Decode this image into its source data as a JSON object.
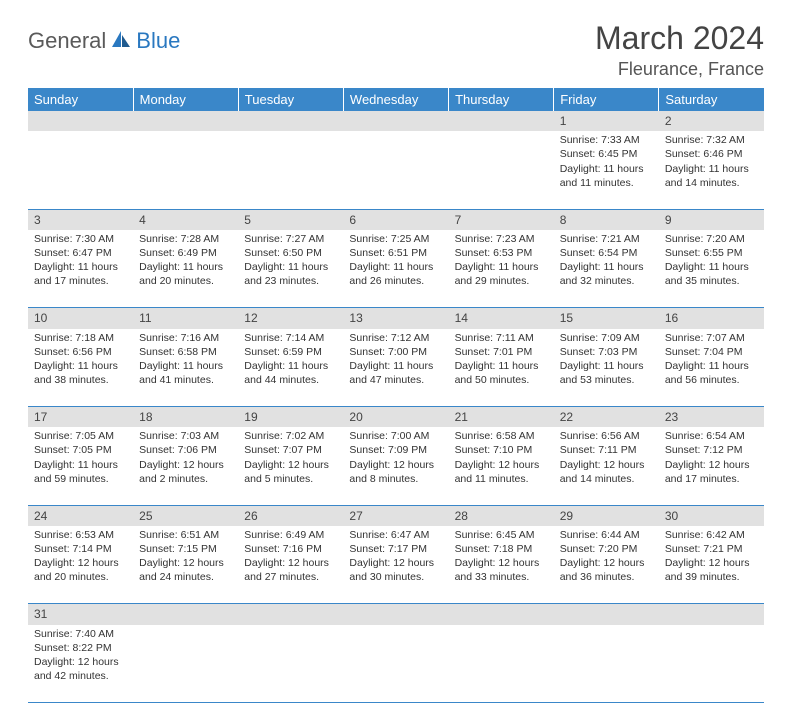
{
  "logo": {
    "general": "General",
    "blue": "Blue"
  },
  "title": "March 2024",
  "location": "Fleurance, France",
  "colors": {
    "header_bg": "#3a87c9",
    "header_text": "#ffffff",
    "daynum_bg": "#e1e1e1",
    "row_border": "#3a87c9",
    "logo_gray": "#5a5a5a",
    "logo_blue": "#2a78c0"
  },
  "day_names": [
    "Sunday",
    "Monday",
    "Tuesday",
    "Wednesday",
    "Thursday",
    "Friday",
    "Saturday"
  ],
  "weeks": [
    [
      {
        "num": "",
        "sunrise": "",
        "sunset": "",
        "daylight": ""
      },
      {
        "num": "",
        "sunrise": "",
        "sunset": "",
        "daylight": ""
      },
      {
        "num": "",
        "sunrise": "",
        "sunset": "",
        "daylight": ""
      },
      {
        "num": "",
        "sunrise": "",
        "sunset": "",
        "daylight": ""
      },
      {
        "num": "",
        "sunrise": "",
        "sunset": "",
        "daylight": ""
      },
      {
        "num": "1",
        "sunrise": "Sunrise: 7:33 AM",
        "sunset": "Sunset: 6:45 PM",
        "daylight": "Daylight: 11 hours and 11 minutes."
      },
      {
        "num": "2",
        "sunrise": "Sunrise: 7:32 AM",
        "sunset": "Sunset: 6:46 PM",
        "daylight": "Daylight: 11 hours and 14 minutes."
      }
    ],
    [
      {
        "num": "3",
        "sunrise": "Sunrise: 7:30 AM",
        "sunset": "Sunset: 6:47 PM",
        "daylight": "Daylight: 11 hours and 17 minutes."
      },
      {
        "num": "4",
        "sunrise": "Sunrise: 7:28 AM",
        "sunset": "Sunset: 6:49 PM",
        "daylight": "Daylight: 11 hours and 20 minutes."
      },
      {
        "num": "5",
        "sunrise": "Sunrise: 7:27 AM",
        "sunset": "Sunset: 6:50 PM",
        "daylight": "Daylight: 11 hours and 23 minutes."
      },
      {
        "num": "6",
        "sunrise": "Sunrise: 7:25 AM",
        "sunset": "Sunset: 6:51 PM",
        "daylight": "Daylight: 11 hours and 26 minutes."
      },
      {
        "num": "7",
        "sunrise": "Sunrise: 7:23 AM",
        "sunset": "Sunset: 6:53 PM",
        "daylight": "Daylight: 11 hours and 29 minutes."
      },
      {
        "num": "8",
        "sunrise": "Sunrise: 7:21 AM",
        "sunset": "Sunset: 6:54 PM",
        "daylight": "Daylight: 11 hours and 32 minutes."
      },
      {
        "num": "9",
        "sunrise": "Sunrise: 7:20 AM",
        "sunset": "Sunset: 6:55 PM",
        "daylight": "Daylight: 11 hours and 35 minutes."
      }
    ],
    [
      {
        "num": "10",
        "sunrise": "Sunrise: 7:18 AM",
        "sunset": "Sunset: 6:56 PM",
        "daylight": "Daylight: 11 hours and 38 minutes."
      },
      {
        "num": "11",
        "sunrise": "Sunrise: 7:16 AM",
        "sunset": "Sunset: 6:58 PM",
        "daylight": "Daylight: 11 hours and 41 minutes."
      },
      {
        "num": "12",
        "sunrise": "Sunrise: 7:14 AM",
        "sunset": "Sunset: 6:59 PM",
        "daylight": "Daylight: 11 hours and 44 minutes."
      },
      {
        "num": "13",
        "sunrise": "Sunrise: 7:12 AM",
        "sunset": "Sunset: 7:00 PM",
        "daylight": "Daylight: 11 hours and 47 minutes."
      },
      {
        "num": "14",
        "sunrise": "Sunrise: 7:11 AM",
        "sunset": "Sunset: 7:01 PM",
        "daylight": "Daylight: 11 hours and 50 minutes."
      },
      {
        "num": "15",
        "sunrise": "Sunrise: 7:09 AM",
        "sunset": "Sunset: 7:03 PM",
        "daylight": "Daylight: 11 hours and 53 minutes."
      },
      {
        "num": "16",
        "sunrise": "Sunrise: 7:07 AM",
        "sunset": "Sunset: 7:04 PM",
        "daylight": "Daylight: 11 hours and 56 minutes."
      }
    ],
    [
      {
        "num": "17",
        "sunrise": "Sunrise: 7:05 AM",
        "sunset": "Sunset: 7:05 PM",
        "daylight": "Daylight: 11 hours and 59 minutes."
      },
      {
        "num": "18",
        "sunrise": "Sunrise: 7:03 AM",
        "sunset": "Sunset: 7:06 PM",
        "daylight": "Daylight: 12 hours and 2 minutes."
      },
      {
        "num": "19",
        "sunrise": "Sunrise: 7:02 AM",
        "sunset": "Sunset: 7:07 PM",
        "daylight": "Daylight: 12 hours and 5 minutes."
      },
      {
        "num": "20",
        "sunrise": "Sunrise: 7:00 AM",
        "sunset": "Sunset: 7:09 PM",
        "daylight": "Daylight: 12 hours and 8 minutes."
      },
      {
        "num": "21",
        "sunrise": "Sunrise: 6:58 AM",
        "sunset": "Sunset: 7:10 PM",
        "daylight": "Daylight: 12 hours and 11 minutes."
      },
      {
        "num": "22",
        "sunrise": "Sunrise: 6:56 AM",
        "sunset": "Sunset: 7:11 PM",
        "daylight": "Daylight: 12 hours and 14 minutes."
      },
      {
        "num": "23",
        "sunrise": "Sunrise: 6:54 AM",
        "sunset": "Sunset: 7:12 PM",
        "daylight": "Daylight: 12 hours and 17 minutes."
      }
    ],
    [
      {
        "num": "24",
        "sunrise": "Sunrise: 6:53 AM",
        "sunset": "Sunset: 7:14 PM",
        "daylight": "Daylight: 12 hours and 20 minutes."
      },
      {
        "num": "25",
        "sunrise": "Sunrise: 6:51 AM",
        "sunset": "Sunset: 7:15 PM",
        "daylight": "Daylight: 12 hours and 24 minutes."
      },
      {
        "num": "26",
        "sunrise": "Sunrise: 6:49 AM",
        "sunset": "Sunset: 7:16 PM",
        "daylight": "Daylight: 12 hours and 27 minutes."
      },
      {
        "num": "27",
        "sunrise": "Sunrise: 6:47 AM",
        "sunset": "Sunset: 7:17 PM",
        "daylight": "Daylight: 12 hours and 30 minutes."
      },
      {
        "num": "28",
        "sunrise": "Sunrise: 6:45 AM",
        "sunset": "Sunset: 7:18 PM",
        "daylight": "Daylight: 12 hours and 33 minutes."
      },
      {
        "num": "29",
        "sunrise": "Sunrise: 6:44 AM",
        "sunset": "Sunset: 7:20 PM",
        "daylight": "Daylight: 12 hours and 36 minutes."
      },
      {
        "num": "30",
        "sunrise": "Sunrise: 6:42 AM",
        "sunset": "Sunset: 7:21 PM",
        "daylight": "Daylight: 12 hours and 39 minutes."
      }
    ],
    [
      {
        "num": "31",
        "sunrise": "Sunrise: 7:40 AM",
        "sunset": "Sunset: 8:22 PM",
        "daylight": "Daylight: 12 hours and 42 minutes."
      },
      {
        "num": "",
        "sunrise": "",
        "sunset": "",
        "daylight": ""
      },
      {
        "num": "",
        "sunrise": "",
        "sunset": "",
        "daylight": ""
      },
      {
        "num": "",
        "sunrise": "",
        "sunset": "",
        "daylight": ""
      },
      {
        "num": "",
        "sunrise": "",
        "sunset": "",
        "daylight": ""
      },
      {
        "num": "",
        "sunrise": "",
        "sunset": "",
        "daylight": ""
      },
      {
        "num": "",
        "sunrise": "",
        "sunset": "",
        "daylight": ""
      }
    ]
  ]
}
